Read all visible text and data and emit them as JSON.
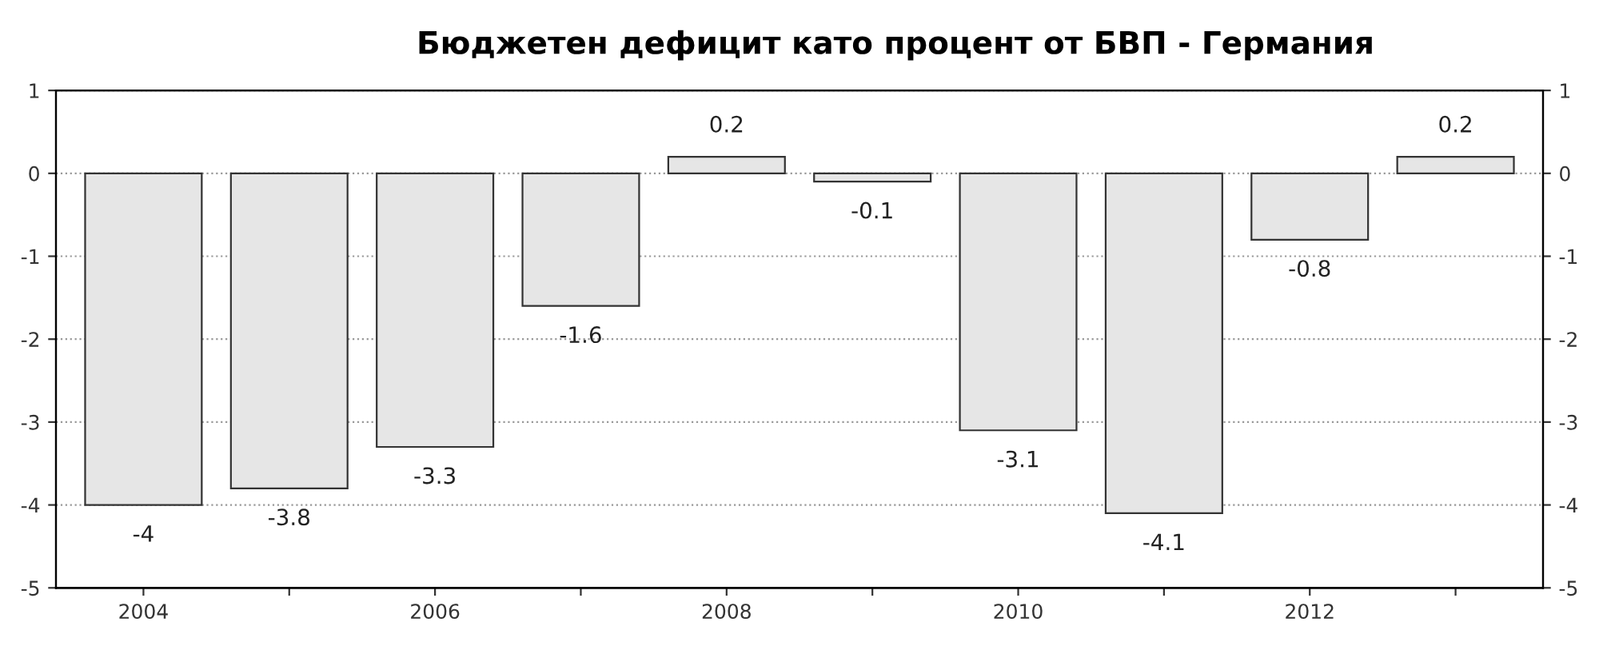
{
  "chart_data": {
    "type": "bar",
    "title": "Бюджетен дефицит като процент от БВП - Германия",
    "categories": [
      "2004",
      null,
      "2006",
      null,
      "2008",
      null,
      "2010",
      null,
      "2012",
      null
    ],
    "values": [
      -4,
      -3.8,
      -3.3,
      -1.6,
      0.2,
      -0.1,
      -3.1,
      -4.1,
      -0.8,
      0.2
    ],
    "color": "#e6e6e6",
    "ylim": [
      -5,
      1
    ],
    "yticks": [
      -5,
      -4,
      -3,
      -2,
      -1,
      0,
      1
    ],
    "y2lim": [
      -5,
      1
    ],
    "y2ticks": [
      -5,
      -4,
      -3,
      -2,
      -1,
      0,
      1
    ],
    "grid": "y",
    "data_labels": true
  }
}
